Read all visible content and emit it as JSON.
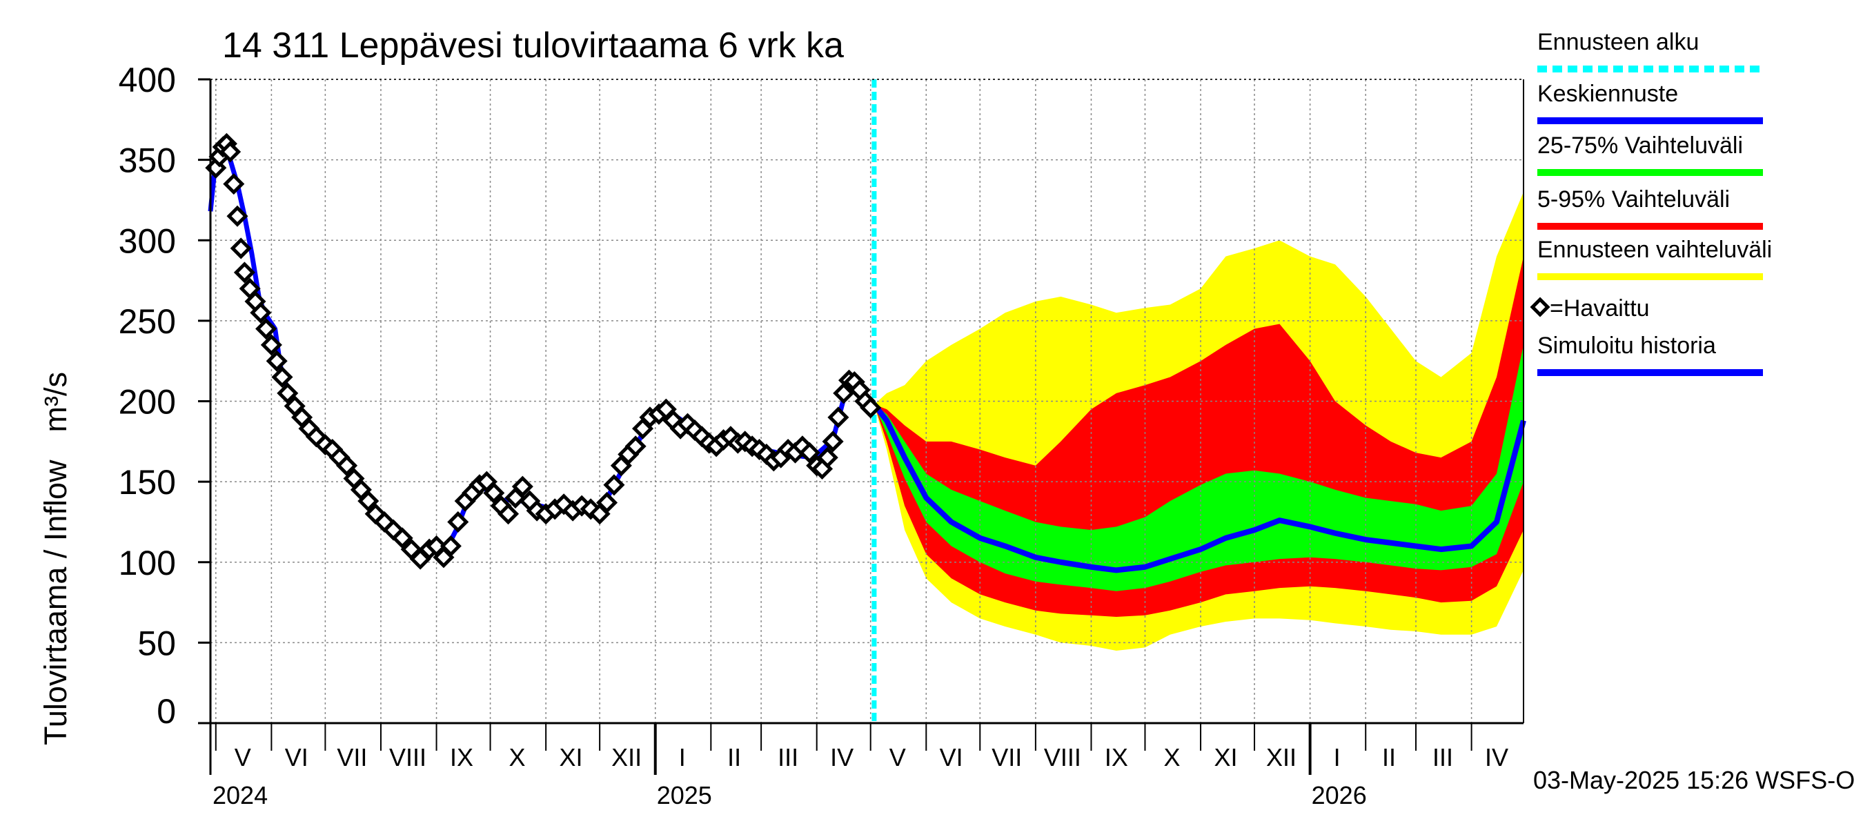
{
  "title": "14 311 Leppävesi tulovirtaama 6 vrk ka",
  "footer": "03-May-2025 15:26 WSFS-O",
  "colors": {
    "observed": "#000000",
    "simulated": "#0000ff",
    "forecast_start": "#00ffff",
    "band_full": "#ffff00",
    "band_5_95": "#ff0000",
    "band_25_75": "#00ff00",
    "median": "#0000ff"
  },
  "chart_data": {
    "type": "line",
    "title": "14 311 Leppävesi tulovirtaama 6 vrk ka",
    "ylabel": "Tulovirtaama / Inflow",
    "yunit": "m³/s",
    "ylim": [
      0,
      400
    ],
    "yticks": [
      0,
      50,
      100,
      150,
      200,
      250,
      300,
      350,
      400
    ],
    "grid": true,
    "legend_position": "right",
    "x_start": "2024-04-28",
    "x_end": "2026-04-30",
    "forecast_start": "2025-05-03",
    "month_labels": [
      {
        "label": "V",
        "date": "2024-05-16"
      },
      {
        "label": "VI",
        "date": "2024-06-15"
      },
      {
        "label": "VII",
        "date": "2024-07-16"
      },
      {
        "label": "VIII",
        "date": "2024-08-16"
      },
      {
        "label": "IX",
        "date": "2024-09-15"
      },
      {
        "label": "X",
        "date": "2024-10-16"
      },
      {
        "label": "XI",
        "date": "2024-11-15"
      },
      {
        "label": "XII",
        "date": "2024-12-16"
      },
      {
        "label": "I",
        "date": "2025-01-16"
      },
      {
        "label": "II",
        "date": "2025-02-14"
      },
      {
        "label": "III",
        "date": "2025-03-16"
      },
      {
        "label": "IV",
        "date": "2025-04-15"
      },
      {
        "label": "V",
        "date": "2025-05-16"
      },
      {
        "label": "VI",
        "date": "2025-06-15"
      },
      {
        "label": "VII",
        "date": "2025-07-16"
      },
      {
        "label": "VIII",
        "date": "2025-08-16"
      },
      {
        "label": "IX",
        "date": "2025-09-15"
      },
      {
        "label": "X",
        "date": "2025-10-16"
      },
      {
        "label": "XI",
        "date": "2025-11-15"
      },
      {
        "label": "XII",
        "date": "2025-12-16"
      },
      {
        "label": "I",
        "date": "2026-01-16"
      },
      {
        "label": "II",
        "date": "2026-02-14"
      },
      {
        "label": "III",
        "date": "2026-03-16"
      },
      {
        "label": "IV",
        "date": "2026-04-15"
      }
    ],
    "year_labels": [
      {
        "label": "2024",
        "date": "2024-05-01"
      },
      {
        "label": "2025",
        "date": "2025-01-01"
      },
      {
        "label": "2026",
        "date": "2026-01-01"
      }
    ],
    "legend": [
      {
        "label": "Ennusteen alku",
        "style": "dashed",
        "color": "#00ffff"
      },
      {
        "label": "Keskiennuste",
        "style": "line",
        "color": "#0000ff"
      },
      {
        "label": "25-75% Vaihteluväli",
        "style": "line",
        "color": "#00ff00"
      },
      {
        "label": "5-95% Vaihteluväli",
        "style": "line",
        "color": "#ff0000"
      },
      {
        "label": "Ennusteen vaihteluväli",
        "style": "line",
        "color": "#ffff00"
      },
      {
        "label": "=Havaittu",
        "style": "marker",
        "color": "#000000"
      },
      {
        "label": "Simuloitu historia",
        "style": "line",
        "color": "#0000ff"
      }
    ],
    "series": [
      {
        "name": "Havaittu",
        "points": [
          [
            "2024-05-01",
            345
          ],
          [
            "2024-05-03",
            352
          ],
          [
            "2024-05-05",
            358
          ],
          [
            "2024-05-07",
            360
          ],
          [
            "2024-05-09",
            355
          ],
          [
            "2024-05-11",
            335
          ],
          [
            "2024-05-13",
            315
          ],
          [
            "2024-05-15",
            295
          ],
          [
            "2024-05-17",
            280
          ],
          [
            "2024-05-20",
            270
          ],
          [
            "2024-05-23",
            262
          ],
          [
            "2024-05-26",
            255
          ],
          [
            "2024-05-29",
            245
          ],
          [
            "2024-06-01",
            235
          ],
          [
            "2024-06-04",
            225
          ],
          [
            "2024-06-07",
            215
          ],
          [
            "2024-06-10",
            205
          ],
          [
            "2024-06-14",
            197
          ],
          [
            "2024-06-18",
            190
          ],
          [
            "2024-06-22",
            183
          ],
          [
            "2024-06-26",
            178
          ],
          [
            "2024-07-01",
            173
          ],
          [
            "2024-07-05",
            170
          ],
          [
            "2024-07-09",
            165
          ],
          [
            "2024-07-13",
            160
          ],
          [
            "2024-07-17",
            152
          ],
          [
            "2024-07-21",
            145
          ],
          [
            "2024-07-25",
            138
          ],
          [
            "2024-07-29",
            130
          ],
          [
            "2024-08-03",
            125
          ],
          [
            "2024-08-08",
            120
          ],
          [
            "2024-08-13",
            115
          ],
          [
            "2024-08-18",
            108
          ],
          [
            "2024-08-23",
            102
          ],
          [
            "2024-08-28",
            108
          ],
          [
            "2024-09-01",
            110
          ],
          [
            "2024-09-05",
            103
          ],
          [
            "2024-09-09",
            110
          ],
          [
            "2024-09-13",
            125
          ],
          [
            "2024-09-17",
            138
          ],
          [
            "2024-09-21",
            143
          ],
          [
            "2024-09-25",
            148
          ],
          [
            "2024-09-29",
            150
          ],
          [
            "2024-10-03",
            143
          ],
          [
            "2024-10-07",
            135
          ],
          [
            "2024-10-11",
            130
          ],
          [
            "2024-10-15",
            140
          ],
          [
            "2024-10-19",
            147
          ],
          [
            "2024-10-23",
            138
          ],
          [
            "2024-10-27",
            132
          ],
          [
            "2024-11-01",
            130
          ],
          [
            "2024-11-06",
            133
          ],
          [
            "2024-11-11",
            136
          ],
          [
            "2024-11-16",
            132
          ],
          [
            "2024-11-21",
            135
          ],
          [
            "2024-11-26",
            133
          ],
          [
            "2024-12-01",
            130
          ],
          [
            "2024-12-05",
            137
          ],
          [
            "2024-12-09",
            148
          ],
          [
            "2024-12-13",
            160
          ],
          [
            "2024-12-17",
            167
          ],
          [
            "2024-12-21",
            172
          ],
          [
            "2024-12-25",
            183
          ],
          [
            "2024-12-29",
            190
          ],
          [
            "2025-01-03",
            192
          ],
          [
            "2025-01-07",
            195
          ],
          [
            "2025-01-11",
            188
          ],
          [
            "2025-01-15",
            183
          ],
          [
            "2025-01-19",
            186
          ],
          [
            "2025-01-23",
            182
          ],
          [
            "2025-01-27",
            178
          ],
          [
            "2025-01-31",
            174
          ],
          [
            "2025-02-04",
            172
          ],
          [
            "2025-02-08",
            176
          ],
          [
            "2025-02-12",
            178
          ],
          [
            "2025-02-16",
            174
          ],
          [
            "2025-02-20",
            175
          ],
          [
            "2025-02-24",
            172
          ],
          [
            "2025-02-28",
            170
          ],
          [
            "2025-03-04",
            167
          ],
          [
            "2025-03-08",
            163
          ],
          [
            "2025-03-12",
            165
          ],
          [
            "2025-03-16",
            170
          ],
          [
            "2025-03-20",
            168
          ],
          [
            "2025-03-24",
            172
          ],
          [
            "2025-03-28",
            168
          ],
          [
            "2025-04-01",
            160
          ],
          [
            "2025-04-04",
            158
          ],
          [
            "2025-04-07",
            165
          ],
          [
            "2025-04-10",
            175
          ],
          [
            "2025-04-13",
            190
          ],
          [
            "2025-04-16",
            205
          ],
          [
            "2025-04-19",
            213
          ],
          [
            "2025-04-22",
            212
          ],
          [
            "2025-04-25",
            207
          ],
          [
            "2025-04-28",
            200
          ],
          [
            "2025-05-01",
            196
          ]
        ]
      },
      {
        "name": "Simuloitu historia",
        "points": [
          [
            "2024-04-28",
            318
          ],
          [
            "2024-04-30",
            340
          ],
          [
            "2024-05-03",
            350
          ],
          [
            "2024-05-06",
            358
          ],
          [
            "2024-05-09",
            350
          ],
          [
            "2024-05-13",
            335
          ],
          [
            "2024-05-17",
            315
          ],
          [
            "2024-05-21",
            292
          ],
          [
            "2024-05-25",
            265
          ],
          [
            "2024-05-28",
            255
          ],
          [
            "2024-05-31",
            250
          ],
          [
            "2024-06-03",
            245
          ],
          [
            "2024-06-06",
            222
          ],
          [
            "2024-06-10",
            207
          ],
          [
            "2024-06-15",
            196
          ],
          [
            "2024-06-20",
            188
          ],
          [
            "2024-06-26",
            180
          ],
          [
            "2024-07-02",
            174
          ],
          [
            "2024-07-08",
            167
          ],
          [
            "2024-07-14",
            158
          ],
          [
            "2024-07-20",
            148
          ],
          [
            "2024-07-26",
            138
          ],
          [
            "2024-08-02",
            128
          ],
          [
            "2024-08-09",
            120
          ],
          [
            "2024-08-16",
            113
          ],
          [
            "2024-08-23",
            105
          ],
          [
            "2024-08-30",
            108
          ],
          [
            "2024-09-06",
            107
          ],
          [
            "2024-09-12",
            120
          ],
          [
            "2024-09-18",
            137
          ],
          [
            "2024-09-26",
            148
          ],
          [
            "2024-10-05",
            138
          ],
          [
            "2024-10-15",
            139
          ],
          [
            "2024-10-25",
            136
          ],
          [
            "2024-11-05",
            133
          ],
          [
            "2024-11-20",
            134
          ],
          [
            "2024-12-01",
            131
          ],
          [
            "2024-12-10",
            150
          ],
          [
            "2024-12-20",
            170
          ],
          [
            "2024-12-30",
            190
          ],
          [
            "2025-01-08",
            194
          ],
          [
            "2025-01-20",
            185
          ],
          [
            "2025-02-01",
            174
          ],
          [
            "2025-02-15",
            176
          ],
          [
            "2025-03-01",
            170
          ],
          [
            "2025-03-15",
            167
          ],
          [
            "2025-03-30",
            165
          ],
          [
            "2025-04-10",
            176
          ],
          [
            "2025-04-18",
            210
          ],
          [
            "2025-04-25",
            207
          ],
          [
            "2025-05-03",
            198
          ]
        ]
      }
    ],
    "forecast": {
      "dates": [
        "2025-05-03",
        "2025-05-10",
        "2025-05-20",
        "2025-06-01",
        "2025-06-15",
        "2025-07-01",
        "2025-07-15",
        "2025-08-01",
        "2025-08-15",
        "2025-09-01",
        "2025-09-15",
        "2025-10-01",
        "2025-10-15",
        "2025-11-01",
        "2025-11-15",
        "2025-12-01",
        "2025-12-15",
        "2026-01-01",
        "2026-01-15",
        "2026-02-01",
        "2026-02-15",
        "2026-03-01",
        "2026-03-15",
        "2026-04-01",
        "2026-04-15",
        "2026-04-30"
      ],
      "median": [
        198,
        188,
        165,
        140,
        125,
        115,
        110,
        103,
        100,
        97,
        95,
        97,
        102,
        108,
        115,
        120,
        126,
        122,
        118,
        114,
        112,
        110,
        108,
        110,
        125,
        188
      ],
      "p25": [
        198,
        180,
        152,
        125,
        110,
        100,
        93,
        88,
        86,
        84,
        82,
        84,
        88,
        94,
        98,
        100,
        102,
        103,
        102,
        100,
        98,
        96,
        95,
        97,
        105,
        150
      ],
      "p75": [
        198,
        192,
        175,
        155,
        145,
        138,
        132,
        125,
        122,
        120,
        122,
        128,
        138,
        148,
        155,
        157,
        155,
        150,
        145,
        140,
        138,
        136,
        132,
        135,
        155,
        235
      ],
      "p5": [
        198,
        175,
        135,
        105,
        90,
        80,
        75,
        70,
        68,
        67,
        66,
        67,
        70,
        75,
        80,
        82,
        84,
        85,
        84,
        82,
        80,
        78,
        75,
        76,
        85,
        120
      ],
      "p95": [
        198,
        195,
        185,
        175,
        175,
        170,
        165,
        160,
        175,
        195,
        205,
        210,
        215,
        225,
        235,
        245,
        248,
        225,
        200,
        185,
        175,
        168,
        165,
        175,
        215,
        290
      ],
      "min": [
        198,
        170,
        120,
        90,
        75,
        65,
        60,
        55,
        50,
        48,
        45,
        47,
        55,
        60,
        63,
        65,
        65,
        64,
        62,
        60,
        58,
        57,
        55,
        55,
        60,
        95
      ],
      "max": [
        198,
        205,
        210,
        225,
        235,
        245,
        255,
        262,
        265,
        260,
        255,
        258,
        260,
        270,
        290,
        295,
        300,
        290,
        285,
        265,
        245,
        225,
        215,
        230,
        290,
        330
      ]
    }
  }
}
